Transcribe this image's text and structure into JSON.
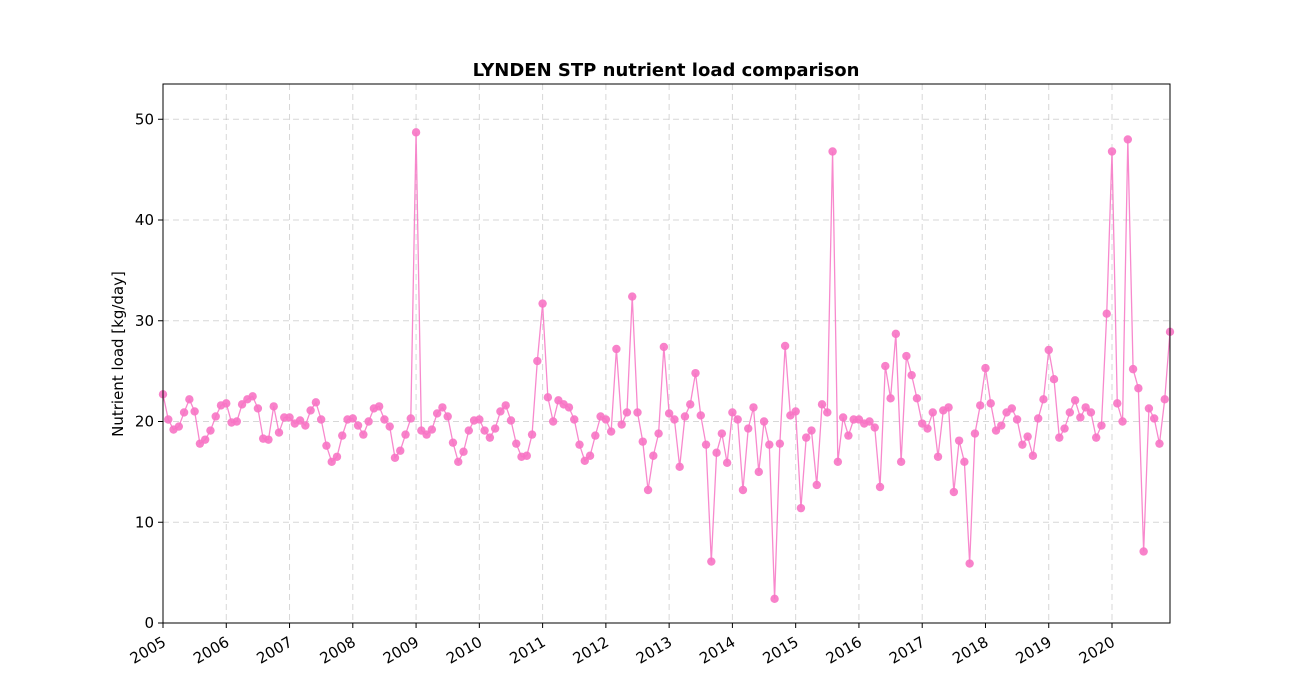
{
  "chart_data": {
    "type": "line",
    "title": "LYNDEN STP nutrient load comparison",
    "xlabel": "",
    "ylabel": "Nutrient load [kg/day]",
    "xlim": [
      "2005-01",
      "2020-12"
    ],
    "ylim": [
      0,
      53.5
    ],
    "yticks": [
      0,
      10,
      20,
      30,
      40,
      50
    ],
    "xticks": [
      "2005",
      "2006",
      "2007",
      "2008",
      "2009",
      "2010",
      "2011",
      "2012",
      "2013",
      "2014",
      "2015",
      "2016",
      "2017",
      "2018",
      "2019",
      "2020"
    ],
    "grid": true,
    "legend": "none",
    "series_color": "#f774c4",
    "x_start": "2005-01",
    "x_step": "monthly",
    "values": [
      22.7,
      20.2,
      19.2,
      19.5,
      20.9,
      22.2,
      21.0,
      17.8,
      18.2,
      19.1,
      20.5,
      21.6,
      21.8,
      19.9,
      20.0,
      21.7,
      22.2,
      22.5,
      21.3,
      18.3,
      18.2,
      21.5,
      18.9,
      20.4,
      20.4,
      19.8,
      20.1,
      19.6,
      21.1,
      21.9,
      20.2,
      17.6,
      16.0,
      16.5,
      18.6,
      20.2,
      20.3,
      19.6,
      18.7,
      20.0,
      21.3,
      21.5,
      20.2,
      19.5,
      16.4,
      17.1,
      18.7,
      20.3,
      48.7,
      19.1,
      18.7,
      19.2,
      20.8,
      21.4,
      20.5,
      17.9,
      16.0,
      17.0,
      19.1,
      20.1,
      20.2,
      19.1,
      18.4,
      19.3,
      21.0,
      21.6,
      20.1,
      17.8,
      16.5,
      16.6,
      18.7,
      26.0,
      31.7,
      22.4,
      20.0,
      22.1,
      21.7,
      21.4,
      20.2,
      17.7,
      16.1,
      16.6,
      18.6,
      20.5,
      20.2,
      19.0,
      27.2,
      19.7,
      20.9,
      32.4,
      20.9,
      18.0,
      13.2,
      16.6,
      18.8,
      27.4,
      20.8,
      20.2,
      15.5,
      20.5,
      21.7,
      24.8,
      20.6,
      17.7,
      6.1,
      16.9,
      18.8,
      15.9,
      20.9,
      20.2,
      13.2,
      19.3,
      21.4,
      15.0,
      20.0,
      17.7,
      2.4,
      17.8,
      27.5,
      20.6,
      21.0,
      11.4,
      18.4,
      19.1,
      13.7,
      21.7,
      20.9,
      46.8,
      16.0,
      20.4,
      18.6,
      20.2,
      20.2,
      19.8,
      20.0,
      19.4,
      13.5,
      25.5,
      22.3,
      28.7,
      16.0,
      26.5,
      24.6,
      22.3,
      19.8,
      19.3,
      20.9,
      16.5,
      21.1,
      21.4,
      13.0,
      18.1,
      16.0,
      5.9,
      18.8,
      21.6,
      25.3,
      21.8,
      19.1,
      19.6,
      20.9,
      21.3,
      20.2,
      17.7,
      18.5,
      16.6,
      20.3,
      22.2,
      27.1,
      24.2,
      18.4,
      19.3,
      20.9,
      22.1,
      20.4,
      21.4,
      20.9,
      18.4,
      19.6,
      30.7,
      46.8,
      21.8,
      20.0,
      48.0,
      25.2,
      23.3,
      7.1,
      21.3,
      20.3,
      17.8,
      22.2,
      28.9
    ]
  }
}
